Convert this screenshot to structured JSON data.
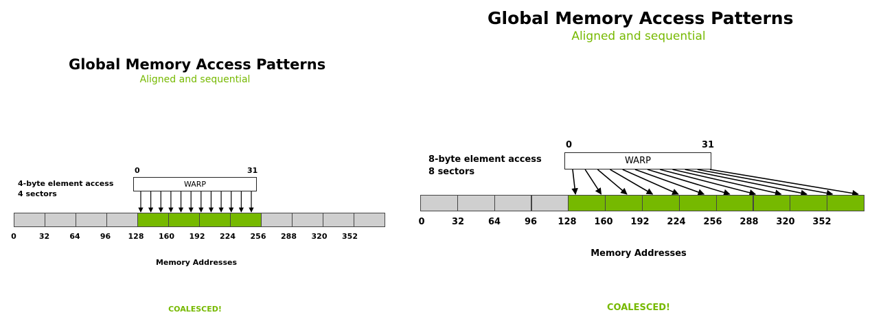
{
  "colors": {
    "accent_green": "#76b900",
    "cell_gray": "#cfcfcf",
    "text": "#000000"
  },
  "panels": [
    {
      "title": "Global Memory Access Patterns",
      "subtitle": "Aligned and sequential",
      "access_line1": "4-byte element access",
      "access_line2": "4 sectors",
      "warp_label": "WARP",
      "warp_start": "0",
      "warp_end": "31",
      "address_labels": [
        "0",
        "32",
        "64",
        "96",
        "128",
        "160",
        "192",
        "224",
        "256",
        "288",
        "320",
        "352"
      ],
      "cells": [
        {
          "state": "idle"
        },
        {
          "state": "idle"
        },
        {
          "state": "idle"
        },
        {
          "state": "idle"
        },
        {
          "state": "accessed"
        },
        {
          "state": "accessed"
        },
        {
          "state": "accessed"
        },
        {
          "state": "accessed"
        },
        {
          "state": "idle"
        },
        {
          "state": "idle"
        },
        {
          "state": "idle"
        },
        {
          "state": "idle"
        }
      ],
      "axis_label": "Memory Addresses",
      "result": "COALESCED!"
    },
    {
      "title": "Global Memory Access Patterns",
      "subtitle": "Aligned and sequential",
      "access_line1": "8-byte element access",
      "access_line2": "8 sectors",
      "warp_label": "WARP",
      "warp_start": "0",
      "warp_end": "31",
      "address_labels": [
        "0",
        "32",
        "64",
        "96",
        "128",
        "160",
        "192",
        "224",
        "256",
        "288",
        "320",
        "352"
      ],
      "cells": [
        {
          "state": "idle"
        },
        {
          "state": "idle"
        },
        {
          "state": "idle"
        },
        {
          "state": "idle"
        },
        {
          "state": "accessed"
        },
        {
          "state": "accessed"
        },
        {
          "state": "accessed"
        },
        {
          "state": "accessed"
        },
        {
          "state": "accessed"
        },
        {
          "state": "accessed"
        },
        {
          "state": "accessed"
        },
        {
          "state": "accessed"
        }
      ],
      "axis_label": "Memory Addresses",
      "result": "COALESCED!"
    }
  ]
}
